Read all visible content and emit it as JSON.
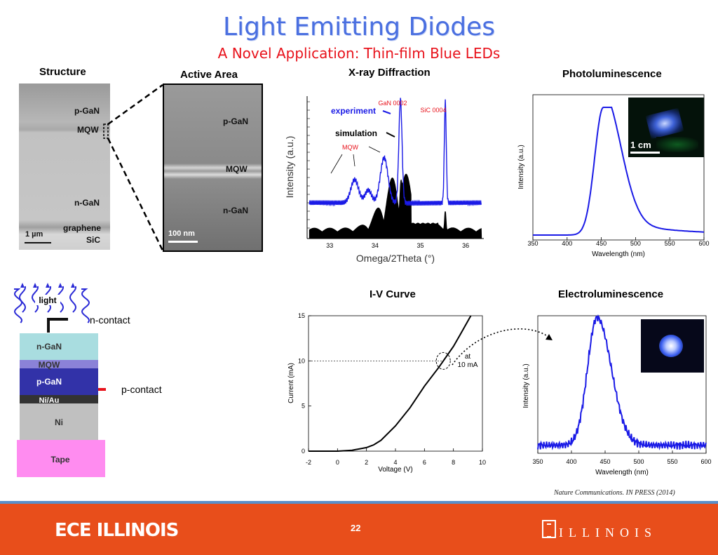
{
  "slide": {
    "title": "Light Emitting Diodes",
    "subtitle": "A Novel Application: Thin-film Blue LEDs",
    "page_number": "22",
    "citation": "Nature Communications. IN PRESS (2014)",
    "footer_left": "ECE ILLINOIS",
    "footer_right": "ILLINOIS"
  },
  "structure": {
    "label": "Structure",
    "layers": [
      "p-GaN",
      "MQW",
      "n-GaN",
      "graphene",
      "SiC"
    ],
    "scale_bar": "1 µm"
  },
  "active_area": {
    "label": "Active Area",
    "layers": [
      "p-GaN",
      "MQW",
      "n-GaN"
    ],
    "scale_bar": "100 nm"
  },
  "device_stack": {
    "light_label": "light",
    "n_contact": "n-contact",
    "p_contact": "p-contact",
    "layers": [
      {
        "name": "n-GaN",
        "color": "#a9dde0"
      },
      {
        "name": "MQW",
        "color": "#8b82d8"
      },
      {
        "name": "p-GaN",
        "color": "#3232a8"
      },
      {
        "name": "Ni/Au",
        "color": "#333333"
      },
      {
        "name": "Ni",
        "color": "#c0c0c0"
      },
      {
        "name": "Tape",
        "color": "#ff8cf0"
      }
    ]
  },
  "chart_data": [
    {
      "type": "line",
      "title": "X-ray Diffraction",
      "xlabel": "Omega/2Theta (°)",
      "ylabel": "Intensity (a.u.)",
      "xlim": [
        32.5,
        36.4
      ],
      "x_ticks": [
        "33",
        "34",
        "35",
        "36"
      ],
      "series": [
        {
          "name": "experiment",
          "color": "#1a1ae6"
        },
        {
          "name": "simulation",
          "color": "#000000"
        }
      ],
      "annotations": [
        "GaN 0002",
        "SiC 0004",
        "MQW"
      ]
    },
    {
      "type": "line",
      "title": "Photoluminescence",
      "xlabel": "Wavelength (nm)",
      "ylabel": "Intensity (a.u.)",
      "xlim": [
        350,
        600
      ],
      "x_ticks": [
        "350",
        "400",
        "450",
        "500",
        "550",
        "600"
      ],
      "peak_nm": 453,
      "inset_scale": "1 cm",
      "color": "#1a1ae6"
    },
    {
      "type": "line",
      "title": "I-V Curve",
      "xlabel": "Voltage (V)",
      "ylabel": "Current (mA)",
      "xlim": [
        -2,
        10
      ],
      "ylim": [
        0,
        15
      ],
      "x_ticks": [
        "-2",
        "0",
        "2",
        "4",
        "6",
        "8",
        "10"
      ],
      "y_ticks": [
        "0",
        "5",
        "10",
        "15"
      ],
      "annotation": "at 10 mA",
      "x": [
        -2,
        0,
        1,
        2,
        2.5,
        3,
        4,
        5,
        6,
        7,
        8,
        8.5,
        9.2
      ],
      "y": [
        0,
        0,
        0.1,
        0.4,
        0.7,
        1.2,
        2.8,
        4.8,
        7.2,
        9.3,
        11.6,
        13.0,
        15.0
      ],
      "color": "#000000"
    },
    {
      "type": "line",
      "title": "Electroluminescence",
      "xlabel": "Wavelength (nm)",
      "ylabel": "Intensity (a.u.)",
      "xlim": [
        350,
        600
      ],
      "x_ticks": [
        "350",
        "400",
        "450",
        "500",
        "550",
        "600"
      ],
      "peak_nm": 438,
      "color": "#1a1ae6"
    }
  ]
}
